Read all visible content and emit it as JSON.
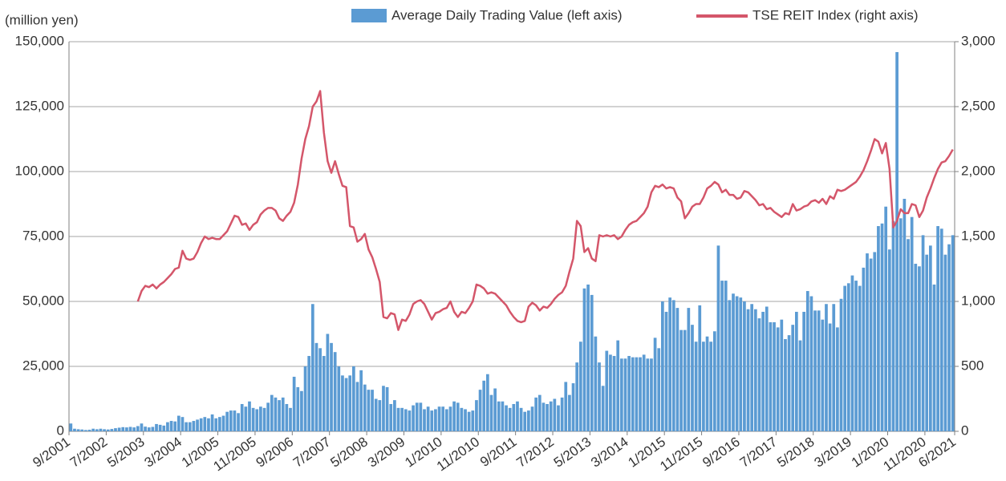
{
  "chart_data": {
    "type": "bar_line",
    "y_axis_label": "(million yen)",
    "categories": [
      "9/2001",
      null,
      null,
      null,
      null,
      null,
      null,
      null,
      null,
      null,
      "7/2002",
      null,
      null,
      null,
      null,
      null,
      null,
      null,
      null,
      null,
      "5/2003",
      null,
      null,
      null,
      null,
      null,
      null,
      null,
      null,
      null,
      "3/2004",
      null,
      null,
      null,
      null,
      null,
      null,
      null,
      null,
      null,
      "1/2005",
      null,
      null,
      null,
      null,
      null,
      null,
      null,
      null,
      null,
      "11/2005",
      null,
      null,
      null,
      null,
      null,
      null,
      null,
      null,
      null,
      "9/2006",
      null,
      null,
      null,
      null,
      null,
      null,
      null,
      null,
      null,
      "7/2007",
      null,
      null,
      null,
      null,
      null,
      null,
      null,
      null,
      null,
      "5/2008",
      null,
      null,
      null,
      null,
      null,
      null,
      null,
      null,
      null,
      "3/2009",
      null,
      null,
      null,
      null,
      null,
      null,
      null,
      null,
      null,
      "1/2010",
      null,
      null,
      null,
      null,
      null,
      null,
      null,
      null,
      null,
      "11/2010",
      null,
      null,
      null,
      null,
      null,
      null,
      null,
      null,
      null,
      "9/2011",
      null,
      null,
      null,
      null,
      null,
      null,
      null,
      null,
      null,
      "7/2012",
      null,
      null,
      null,
      null,
      null,
      null,
      null,
      null,
      null,
      "5/2013",
      null,
      null,
      null,
      null,
      null,
      null,
      null,
      null,
      null,
      "3/2014",
      null,
      null,
      null,
      null,
      null,
      null,
      null,
      null,
      null,
      "1/2015",
      null,
      null,
      null,
      null,
      null,
      null,
      null,
      null,
      null,
      "11/2015",
      null,
      null,
      null,
      null,
      null,
      null,
      null,
      null,
      null,
      "9/2016",
      null,
      null,
      null,
      null,
      null,
      null,
      null,
      null,
      null,
      "7/2017",
      null,
      null,
      null,
      null,
      null,
      null,
      null,
      null,
      null,
      "5/2018",
      null,
      null,
      null,
      null,
      null,
      null,
      null,
      null,
      null,
      "3/2019",
      null,
      null,
      null,
      null,
      null,
      null,
      null,
      null,
      null,
      "1/2020",
      null,
      null,
      null,
      null,
      null,
      null,
      null,
      null,
      null,
      "11/2020",
      null,
      null,
      null,
      null,
      null,
      null,
      "6/2021"
    ],
    "series": [
      {
        "name": "Average Daily Trading Value (left axis)",
        "type": "bar",
        "color": "#5b9bd3",
        "axis": "y",
        "values": [
          3000,
          1000,
          800,
          700,
          500,
          600,
          1000,
          800,
          1000,
          800,
          700,
          900,
          1200,
          1400,
          1600,
          1500,
          1700,
          1500,
          2000,
          3000,
          1800,
          1500,
          1700,
          2800,
          2500,
          2200,
          3500,
          4000,
          3800,
          6000,
          5500,
          3500,
          3500,
          4000,
          4500,
          5000,
          5500,
          5000,
          6500,
          5000,
          5500,
          6000,
          7500,
          8000,
          8000,
          7000,
          10500,
          9500,
          11500,
          9000,
          8500,
          9500,
          9000,
          11000,
          14000,
          13000,
          12000,
          13000,
          10500,
          9000,
          21000,
          17000,
          15500,
          25000,
          29000,
          49000,
          34000,
          32000,
          29000,
          37500,
          34000,
          30500,
          25000,
          21500,
          20500,
          21500,
          25000,
          19000,
          23500,
          18000,
          16000,
          16000,
          12500,
          12000,
          17500,
          17000,
          10500,
          12000,
          9000,
          9000,
          8500,
          8000,
          10000,
          11000,
          11000,
          8500,
          9500,
          8000,
          8500,
          9500,
          9500,
          8500,
          9500,
          11500,
          11000,
          9000,
          8500,
          7500,
          8000,
          12000,
          16000,
          19500,
          22000,
          14000,
          16500,
          11500,
          11500,
          10000,
          9000,
          10500,
          11500,
          9000,
          7500,
          8000,
          9500,
          13000,
          14000,
          11000,
          10500,
          11500,
          12500,
          10000,
          13000,
          19000,
          14000,
          18500,
          26500,
          34500,
          55000,
          56500,
          52500,
          36500,
          26500,
          17500,
          31000,
          29500,
          29000,
          35000,
          28000,
          28000,
          29000,
          28500,
          28500,
          28500,
          29500,
          28000,
          28000,
          36000,
          32000,
          50000,
          46000,
          51500,
          50500,
          47500,
          39000,
          39000,
          47500,
          41000,
          34500,
          48500,
          34500,
          36500,
          34500,
          38500,
          71500,
          58000,
          58000,
          50500,
          53000,
          52000,
          51500,
          50000,
          47000,
          49000,
          47000,
          43500,
          46000,
          48000,
          42000,
          42000,
          40000,
          43000,
          35500,
          37000,
          41000,
          46000,
          35000,
          46000,
          54000,
          52000,
          46500,
          46500,
          43000,
          49000,
          41500,
          49000,
          40000,
          51000,
          56000,
          57000,
          60000,
          58000,
          56000,
          63000,
          68500,
          66500,
          69000,
          79000,
          80000,
          86500,
          70000,
          81000,
          146000,
          82000,
          89500,
          74000,
          82500,
          64500,
          63500,
          75500,
          68000,
          71500,
          56500,
          79000,
          78000,
          68000,
          72000,
          75500
        ]
      },
      {
        "name": "TSE REIT Index (right axis)",
        "type": "line",
        "color": "#d4566a",
        "axis": "y2",
        "values": [
          null,
          null,
          null,
          null,
          null,
          null,
          null,
          null,
          null,
          null,
          null,
          null,
          null,
          null,
          null,
          null,
          null,
          null,
          1000,
          1080,
          1120,
          1110,
          1130,
          1100,
          1130,
          1150,
          1180,
          1210,
          1250,
          1260,
          1390,
          1330,
          1320,
          1330,
          1380,
          1450,
          1500,
          1480,
          1490,
          1480,
          1480,
          1510,
          1540,
          1600,
          1660,
          1650,
          1590,
          1600,
          1550,
          1590,
          1610,
          1670,
          1700,
          1720,
          1720,
          1700,
          1640,
          1620,
          1660,
          1690,
          1760,
          1900,
          2100,
          2250,
          2350,
          2500,
          2540,
          2620,
          2300,
          2080,
          1990,
          2080,
          1980,
          1890,
          1880,
          1580,
          1570,
          1460,
          1480,
          1520,
          1400,
          1340,
          1250,
          1150,
          880,
          870,
          910,
          900,
          780,
          860,
          850,
          900,
          980,
          1000,
          1010,
          980,
          920,
          860,
          910,
          920,
          940,
          950,
          1000,
          920,
          880,
          920,
          910,
          950,
          1000,
          1130,
          1120,
          1100,
          1060,
          1070,
          1060,
          1030,
          1000,
          970,
          920,
          880,
          850,
          840,
          850,
          960,
          990,
          970,
          930,
          960,
          950,
          980,
          1020,
          1050,
          1070,
          1120,
          1230,
          1330,
          1620,
          1580,
          1380,
          1410,
          1330,
          1310,
          1510,
          1500,
          1510,
          1500,
          1510,
          1480,
          1500,
          1550,
          1590,
          1610,
          1620,
          1650,
          1680,
          1730,
          1840,
          1890,
          1880,
          1900,
          1870,
          1880,
          1870,
          1800,
          1770,
          1640,
          1680,
          1730,
          1750,
          1750,
          1800,
          1870,
          1890,
          1920,
          1900,
          1840,
          1860,
          1820,
          1820,
          1790,
          1800,
          1850,
          1840,
          1810,
          1780,
          1740,
          1750,
          1710,
          1720,
          1690,
          1670,
          1650,
          1680,
          1670,
          1750,
          1700,
          1710,
          1730,
          1740,
          1770,
          1780,
          1760,
          1790,
          1750,
          1810,
          1790,
          1860,
          1850,
          1860,
          1880,
          1900,
          1920,
          1960,
          2010,
          2080,
          2160,
          2250,
          2230,
          2140,
          2220,
          2020,
          1570,
          1620,
          1710,
          1680,
          1680,
          1750,
          1740,
          1650,
          1700,
          1800,
          1870,
          1950,
          2020,
          2070,
          2080,
          2120,
          2170
        ]
      }
    ],
    "ylim": [
      0,
      150000
    ],
    "yticks": [
      0,
      {
        "value": 25000,
        "label": "25,000"
      },
      {
        "value": 50000,
        "label": "50,000"
      },
      {
        "value": 75000,
        "label": "75,000"
      },
      {
        "value": 100000,
        "label": "100,000"
      },
      {
        "value": 125000,
        "label": "125,000"
      },
      {
        "value": 150000,
        "label": "150,000"
      }
    ],
    "y2lim": [
      0,
      3000
    ],
    "y2ticks": [
      0,
      500,
      {
        "value": 1000,
        "label": "1,000"
      },
      {
        "value": 1500,
        "label": "1,500"
      },
      {
        "value": 2000,
        "label": "2,000"
      },
      {
        "value": 2500,
        "label": "2,500"
      },
      {
        "value": 3000,
        "label": "3,000"
      }
    ],
    "grid": true
  }
}
